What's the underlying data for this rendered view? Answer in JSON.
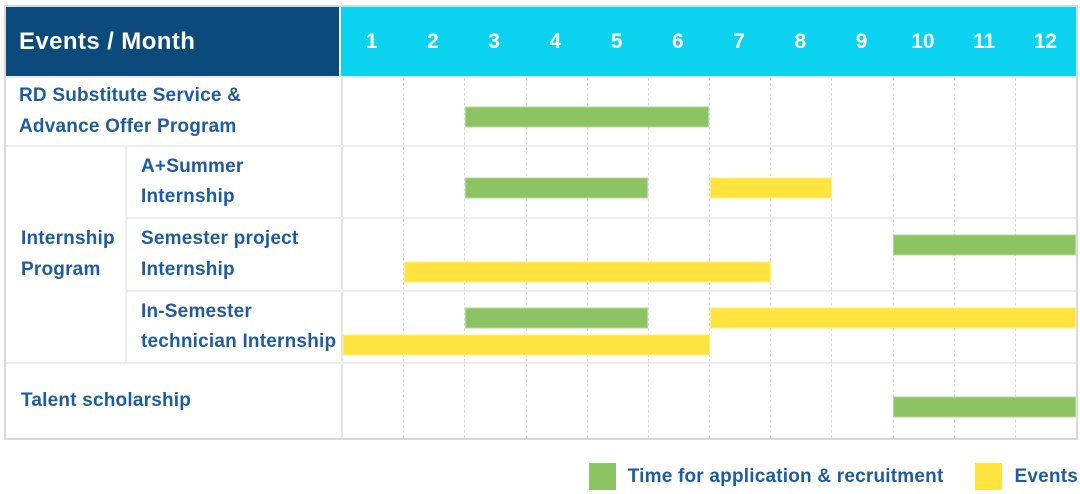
{
  "header": {
    "label": "Events / Month",
    "months": [
      "1",
      "2",
      "3",
      "4",
      "5",
      "6",
      "7",
      "8",
      "9",
      "10",
      "11",
      "12"
    ]
  },
  "legend": {
    "items": [
      {
        "key": "application",
        "label": "Time for application & recruitment",
        "color": "#8cc464"
      },
      {
        "key": "events",
        "label": "Events",
        "color": "#ffe33e"
      }
    ]
  },
  "colors": {
    "header_navy": "#0c4a7c",
    "header_cyan": "#0bd3ef",
    "label_text": "#1f5c9d",
    "bar_green": "#8cc464",
    "bar_yellow": "#ffe33e",
    "grid_border": "#d9d9d9"
  },
  "chart_data": {
    "type": "gantt",
    "title": "Events / Month",
    "x_unit": "month",
    "x_range": [
      1,
      12
    ],
    "group_label": "Internship\nProgram",
    "rows": [
      {
        "label": "RD Substitute Service &\nAdvance Offer Program",
        "group": null,
        "lanes": [
          [
            {
              "type": "application",
              "start": 3,
              "end": 6
            }
          ]
        ]
      },
      {
        "label": "A+Summer\nInternship",
        "group": "Internship\nProgram",
        "lanes": [
          [
            {
              "type": "application",
              "start": 3,
              "end": 5
            },
            {
              "type": "events",
              "start": 7,
              "end": 8
            }
          ]
        ]
      },
      {
        "label": "Semester project\nInternship",
        "group": "Internship\nProgram",
        "lanes": [
          [
            {
              "type": "application",
              "start": 10,
              "end": 12
            }
          ],
          [
            {
              "type": "events",
              "start": 2,
              "end": 7
            }
          ]
        ]
      },
      {
        "label": "In-Semester\ntechnician Internship",
        "group": "Internship\nProgram",
        "lanes": [
          [
            {
              "type": "application",
              "start": 3,
              "end": 5
            },
            {
              "type": "events",
              "start": 7,
              "end": 12
            }
          ],
          [
            {
              "type": "events",
              "start": 1,
              "end": 6
            }
          ]
        ]
      },
      {
        "label": "Talent scholarship",
        "group": null,
        "lanes": [
          [
            {
              "type": "application",
              "start": 10,
              "end": 12
            }
          ]
        ]
      }
    ]
  }
}
